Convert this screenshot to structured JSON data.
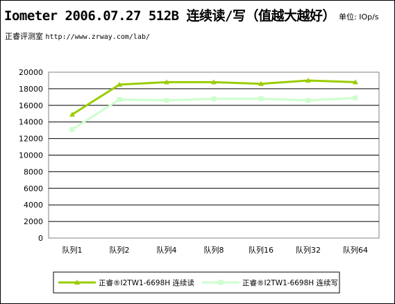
{
  "header": {
    "title": "Iometer 2006.07.27 512B 连续读/写（值越大越好）",
    "unit": "单位: IOp/s",
    "source_label": "正睿评测室",
    "source_url": "http://www.zrway.com/lab/"
  },
  "chart_data": {
    "type": "line",
    "categories": [
      "队列1",
      "队列2",
      "队列4",
      "队列8",
      "队列16",
      "队列32",
      "队列64"
    ],
    "ylim": [
      0,
      20000
    ],
    "yticks": [
      0,
      2000,
      4000,
      6000,
      8000,
      10000,
      12000,
      14000,
      16000,
      18000,
      20000
    ],
    "grid": true,
    "legend_position": "bottom",
    "series": [
      {
        "name": "正睿®I2TW1-6698H 连续读",
        "color": "#99cc00",
        "marker": "triangle",
        "values": [
          14900,
          18500,
          18800,
          18800,
          18600,
          19000,
          18800
        ]
      },
      {
        "name": "正睿®I2TW1-6698H 连续写",
        "color": "#ccffcc",
        "marker": "square",
        "values": [
          13100,
          16700,
          16600,
          16800,
          16800,
          16600,
          16900
        ]
      }
    ]
  }
}
